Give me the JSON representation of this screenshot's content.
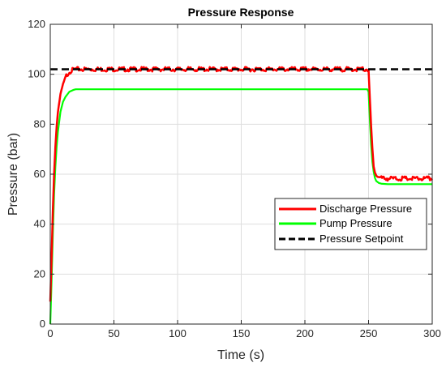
{
  "chart_data": {
    "type": "line",
    "title": "Pressure Response",
    "xlabel": "Time (s)",
    "ylabel": "Pressure (bar)",
    "xlim": [
      0,
      300
    ],
    "ylim": [
      0,
      120
    ],
    "xticks": [
      0,
      50,
      100,
      150,
      200,
      250,
      300
    ],
    "yticks": [
      0,
      20,
      40,
      60,
      80,
      100,
      120
    ],
    "grid": true,
    "legend_position": "right",
    "series": [
      {
        "name": "Discharge Pressure",
        "color": "#ff0000",
        "style": "solid",
        "noisy": true,
        "x": [
          0,
          1,
          2,
          3,
          4,
          5,
          6,
          8,
          10,
          12,
          15,
          18,
          20,
          25,
          30,
          50,
          100,
          150,
          200,
          249,
          250,
          251,
          252,
          253,
          254,
          255,
          256,
          258,
          260,
          265,
          270,
          280,
          290,
          300
        ],
        "y": [
          9,
          26,
          45,
          60,
          71,
          79,
          85,
          92,
          96,
          99,
          101,
          101.8,
          102,
          102,
          102,
          102,
          102,
          102,
          102,
          102,
          101,
          90,
          79,
          70,
          64,
          61,
          59.5,
          58.8,
          58.5,
          58.3,
          58.2,
          58.2,
          58.2,
          58.2
        ]
      },
      {
        "name": "Pump Pressure",
        "color": "#00ff00",
        "style": "solid",
        "noisy": false,
        "x": [
          0,
          1,
          2,
          3,
          4,
          5,
          6,
          8,
          10,
          12,
          15,
          18,
          20,
          25,
          30,
          50,
          100,
          150,
          200,
          249,
          250,
          251,
          252,
          253,
          254,
          255,
          256,
          258,
          260,
          265,
          270,
          280,
          290,
          300
        ],
        "y": [
          0,
          17,
          36,
          52,
          63,
          71,
          77,
          85,
          89,
          91,
          93,
          93.7,
          94,
          94,
          94,
          94,
          94,
          94,
          94,
          94,
          93,
          82,
          72,
          65,
          61,
          58.5,
          57.3,
          56.5,
          56.2,
          56,
          56,
          56,
          56,
          56
        ]
      },
      {
        "name": "Pressure Setpoint",
        "color": "#000000",
        "style": "dashed",
        "noisy": false,
        "x": [
          0,
          300
        ],
        "y": [
          102,
          102
        ]
      }
    ]
  }
}
